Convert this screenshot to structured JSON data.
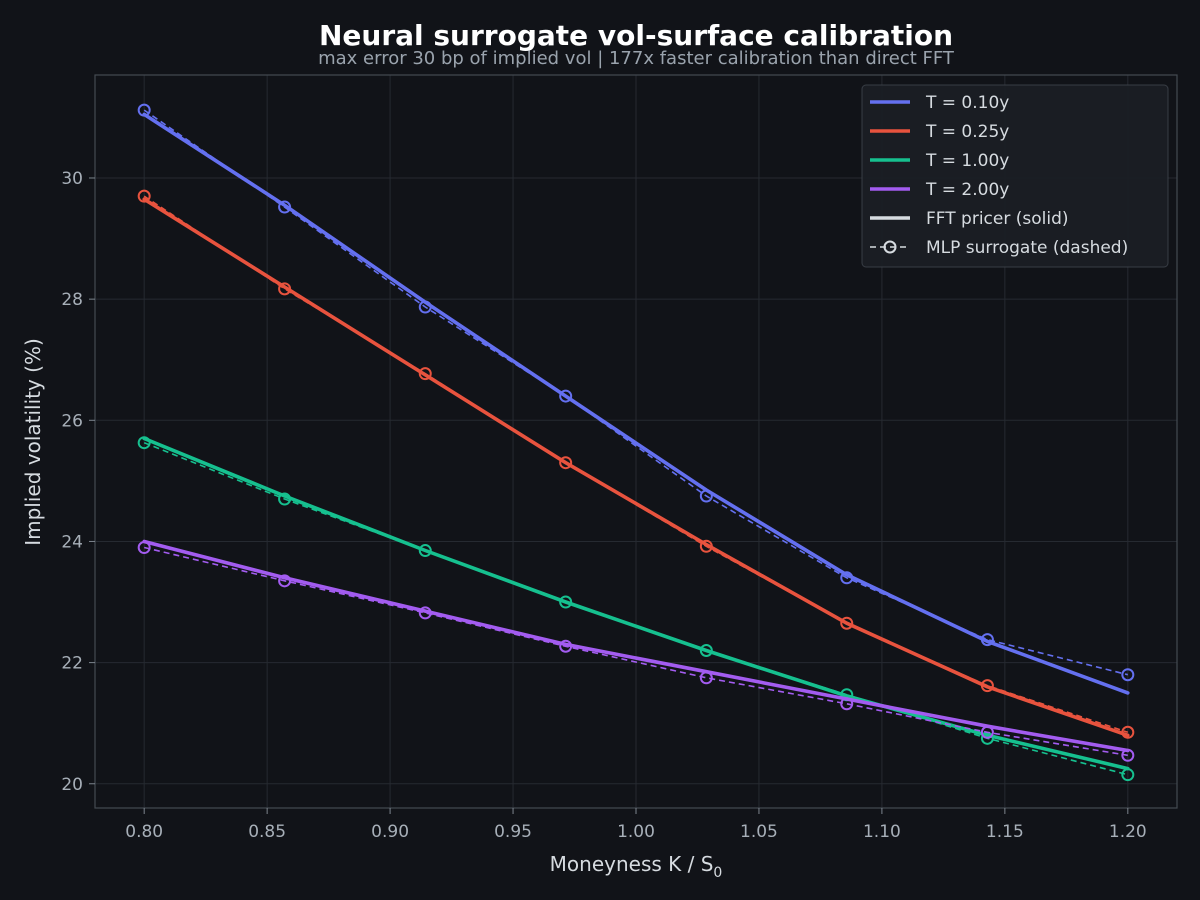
{
  "chart_data": {
    "type": "line",
    "title": "Neural surrogate vol-surface calibration",
    "subtitle": "max error 30 bp of implied vol  |  177x faster calibration than direct FFT",
    "xlabel": "Moneyness  K / S",
    "xlabel_sub": "0",
    "ylabel": "Implied volatility (%)",
    "xlim": [
      0.78,
      1.22
    ],
    "ylim": [
      19.6,
      31.7
    ],
    "xticks": [
      0.8,
      0.85,
      0.9,
      0.95,
      1.0,
      1.05,
      1.1,
      1.15,
      1.2
    ],
    "xtick_labels": [
      "0.80",
      "0.85",
      "0.90",
      "0.95",
      "1.00",
      "1.05",
      "1.10",
      "1.15",
      "1.20"
    ],
    "yticks": [
      20,
      22,
      24,
      26,
      28,
      30
    ],
    "ytick_labels": [
      "20",
      "22",
      "24",
      "26",
      "28",
      "30"
    ],
    "grid": true,
    "legend_position": "top-right",
    "x_fft": [
      0.8,
      0.8571,
      0.9143,
      0.9714,
      1.0286,
      1.0857,
      1.1429,
      1.2
    ],
    "x_mlp": [
      0.8,
      0.8571,
      0.9143,
      0.9714,
      1.0286,
      1.0857,
      1.1429,
      1.2
    ],
    "series": [
      {
        "name": "T = 0.10y",
        "color": "#6470f0",
        "fft": [
          31.05,
          29.55,
          27.95,
          26.4,
          24.85,
          23.45,
          22.35,
          21.5
        ],
        "mlp": [
          31.12,
          29.52,
          27.87,
          26.4,
          24.75,
          23.4,
          22.38,
          21.8
        ]
      },
      {
        "name": "T = 0.25y",
        "color": "#e8533e",
        "fft": [
          29.65,
          28.2,
          26.75,
          25.3,
          23.95,
          22.65,
          21.6,
          20.8
        ],
        "mlp": [
          29.7,
          28.17,
          26.77,
          25.3,
          23.92,
          22.65,
          21.62,
          20.85
        ]
      },
      {
        "name": "T = 1.00y",
        "color": "#16c08f",
        "fft": [
          25.7,
          24.75,
          23.85,
          23.0,
          22.2,
          21.45,
          20.8,
          20.25
        ],
        "mlp": [
          25.63,
          24.7,
          23.85,
          23.0,
          22.2,
          21.47,
          20.75,
          20.15
        ]
      },
      {
        "name": "T = 2.00y",
        "color": "#a35cf0",
        "fft": [
          24.0,
          23.4,
          22.85,
          22.3,
          21.85,
          21.4,
          20.95,
          20.55
        ],
        "mlp": [
          23.9,
          23.35,
          22.82,
          22.27,
          21.75,
          21.32,
          20.85,
          20.47
        ]
      }
    ],
    "legend_extra": [
      {
        "label": "FFT pricer (solid)",
        "color": "#d6dbe0",
        "style": "solid"
      },
      {
        "label": "MLP surrogate (dashed)",
        "color": "#d6dbe0",
        "style": "dashed-marker"
      }
    ]
  }
}
